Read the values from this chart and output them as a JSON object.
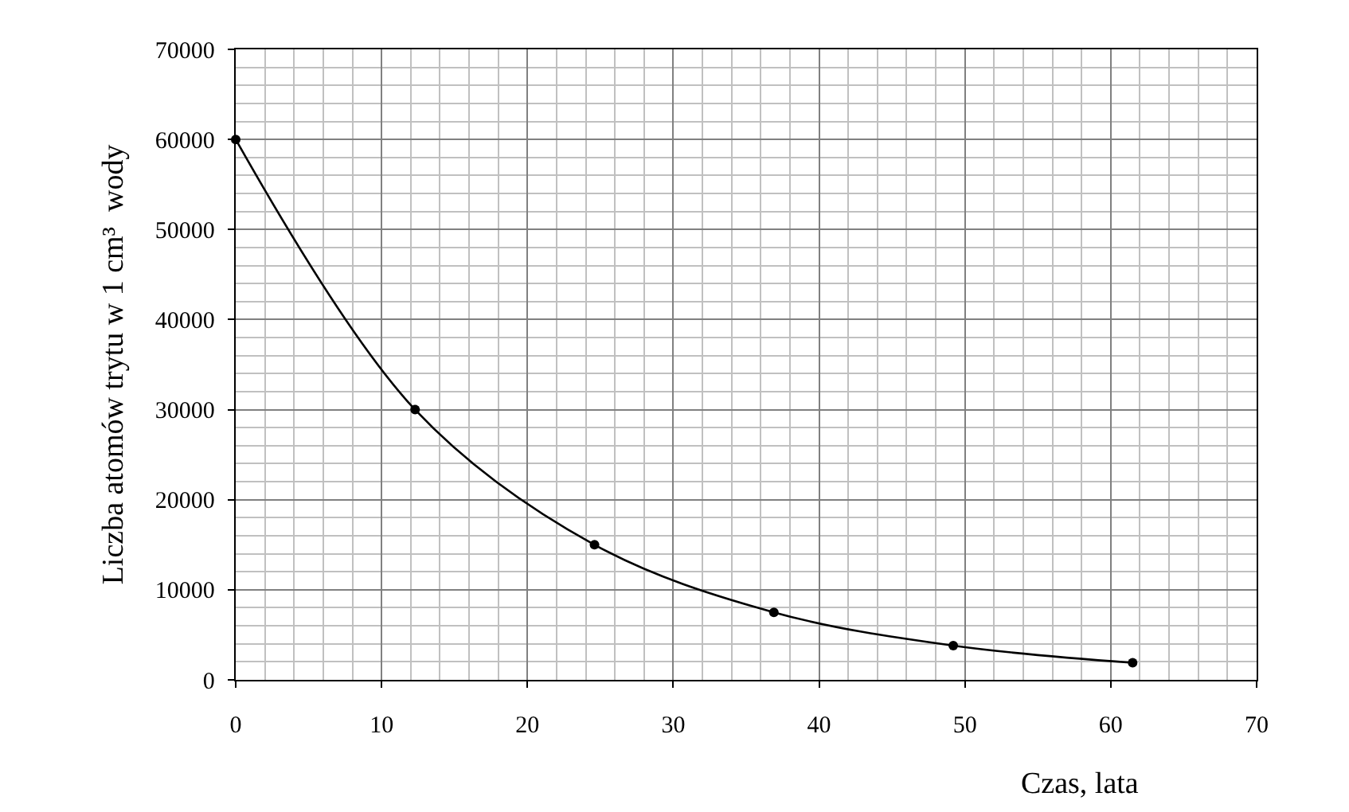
{
  "chart_data": {
    "type": "line",
    "xlabel": "Czas, lata",
    "ylabel": "Liczba atomów trytu w 1 cm³  wody",
    "x": [
      0,
      12.3,
      24.6,
      36.9,
      49.2,
      61.5
    ],
    "values": [
      60000,
      30000,
      15000,
      7500,
      3800,
      1900
    ],
    "color": "#000000",
    "marker": "circle",
    "line_style": "solid",
    "xlim": [
      0,
      70
    ],
    "xticks": [
      0,
      10,
      20,
      30,
      40,
      50,
      60,
      70
    ],
    "ylim": [
      0,
      70000
    ],
    "yticks": [
      0,
      10000,
      20000,
      30000,
      40000,
      50000,
      60000,
      70000
    ],
    "grid": true,
    "legend": false
  }
}
